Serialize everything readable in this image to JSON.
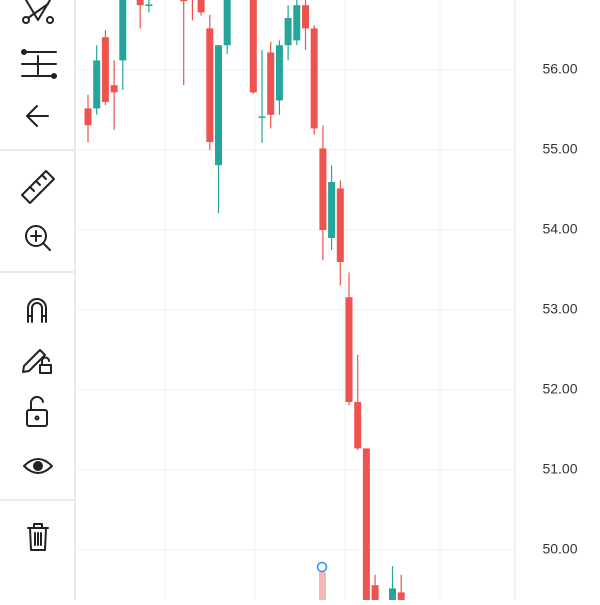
{
  "chart_data": {
    "type": "candlestick",
    "categories": [
      null,
      null,
      null,
      null,
      null,
      null,
      null,
      null,
      null,
      null,
      null,
      null,
      null,
      null,
      null,
      null,
      null,
      null,
      null,
      null,
      null,
      null,
      null,
      null,
      null,
      null,
      null,
      null,
      null,
      null,
      null,
      null,
      null,
      null,
      null,
      null,
      null
    ],
    "open": [
      55.52,
      55.52,
      56.41,
      55.81,
      56.12,
      null,
      56.88,
      56.8,
      null,
      null,
      null,
      56.9,
      56.9,
      56.88,
      56.52,
      54.81,
      56.31,
      null,
      null,
      56.9,
      55.41,
      56.22,
      55.62,
      56.31,
      56.37,
      56.81,
      56.52,
      55.02,
      53.9,
      54.52,
      53.16,
      51.85,
      51.27,
      49.56,
      null,
      49.3,
      49.47
    ],
    "high": [
      55.69,
      56.31,
      56.5,
      56.12,
      57.0,
      null,
      56.9,
      56.88,
      null,
      null,
      null,
      57.0,
      57.0,
      57.0,
      56.69,
      56.31,
      57.0,
      null,
      null,
      57.0,
      56.25,
      56.35,
      56.37,
      56.81,
      56.9,
      56.9,
      56.56,
      55.31,
      54.81,
      54.62,
      53.47,
      52.44,
      51.27,
      49.69,
      null,
      49.8,
      49.69
    ],
    "low": [
      55.1,
      55.44,
      55.56,
      55.25,
      55.75,
      null,
      56.52,
      56.72,
      null,
      null,
      null,
      55.81,
      56.62,
      56.68,
      55.0,
      54.21,
      56.2,
      null,
      null,
      55.7,
      55.09,
      55.27,
      55.44,
      56.12,
      56.31,
      56.25,
      55.19,
      53.62,
      53.75,
      53.31,
      51.81,
      51.25,
      49.2,
      49.2,
      null,
      49.2,
      49.2
    ],
    "close": [
      55.31,
      56.12,
      55.6,
      55.72,
      56.9,
      null,
      56.81,
      56.82,
      null,
      null,
      null,
      56.86,
      56.88,
      56.72,
      55.1,
      56.31,
      56.9,
      null,
      null,
      55.72,
      55.42,
      55.44,
      56.31,
      56.65,
      56.81,
      56.52,
      55.27,
      54.0,
      54.6,
      53.6,
      51.85,
      51.27,
      49.3,
      49.3,
      null,
      49.52,
      49.3
    ],
    "up_color": "#26a69a",
    "down_color": "#ef5350",
    "ylim": [
      49.375,
      56.875
    ],
    "yticks": [
      {
        "value": 50,
        "label": "50.00"
      },
      {
        "value": 51,
        "label": "51.00"
      },
      {
        "value": 52,
        "label": "52.00"
      },
      {
        "value": 53,
        "label": "53.00"
      },
      {
        "value": 54,
        "label": "54.00"
      },
      {
        "value": 55,
        "label": "55.00"
      },
      {
        "value": 56,
        "label": "56.00"
      }
    ],
    "grid": true
  }
}
